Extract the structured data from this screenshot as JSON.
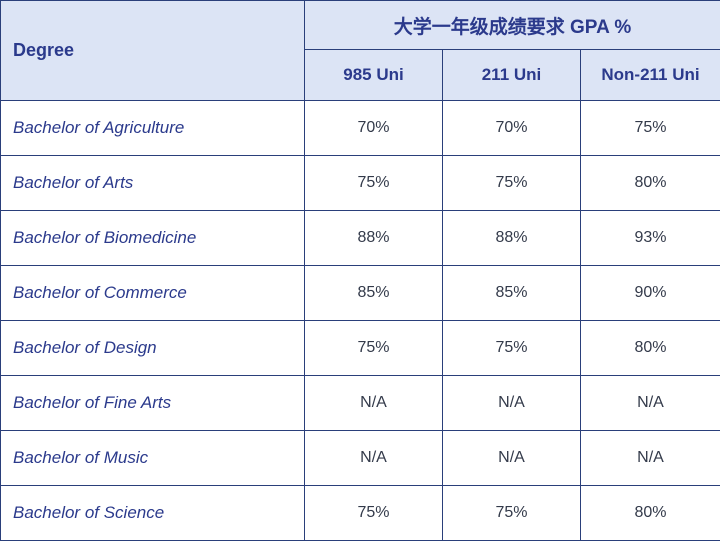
{
  "table": {
    "header_degree": "Degree",
    "header_group": "大学一年级成绩要求 GPA %",
    "columns": [
      "985 Uni",
      "211 Uni",
      "Non-211 Uni"
    ],
    "rows": [
      {
        "degree": "Bachelor of Agriculture",
        "values": [
          "70%",
          "70%",
          "75%"
        ]
      },
      {
        "degree": "Bachelor of Arts",
        "values": [
          "75%",
          "75%",
          "80%"
        ]
      },
      {
        "degree": "Bachelor of Biomedicine",
        "values": [
          "88%",
          "88%",
          "93%"
        ]
      },
      {
        "degree": "Bachelor of Commerce",
        "values": [
          "85%",
          "85%",
          "90%"
        ]
      },
      {
        "degree": "Bachelor of Design",
        "values": [
          "75%",
          "75%",
          "80%"
        ]
      },
      {
        "degree": "Bachelor of Fine Arts",
        "values": [
          "N/A",
          "N/A",
          "N/A"
        ]
      },
      {
        "degree": "Bachelor of Music",
        "values": [
          "N/A",
          "N/A",
          "N/A"
        ]
      },
      {
        "degree": "Bachelor of Science",
        "values": [
          "75%",
          "75%",
          "80%"
        ]
      }
    ]
  },
  "colors": {
    "header_bg": "#dce4f5",
    "text_primary": "#2b3a8c",
    "border": "#2a3f7a"
  }
}
